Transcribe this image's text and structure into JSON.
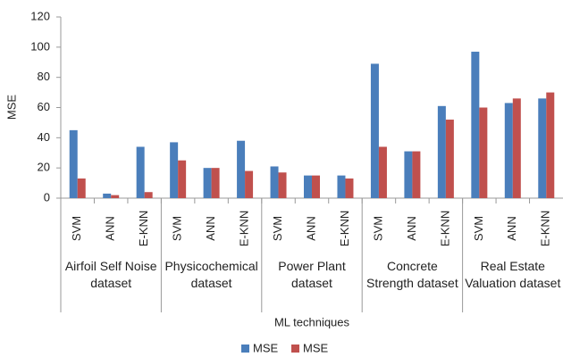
{
  "chart_data": {
    "type": "bar",
    "y_label": "MSE",
    "x_label": "ML techniques",
    "categories": [
      "SVM",
      "ANN",
      "E-KNN",
      "SVM",
      "ANN",
      "E-KNN",
      "SVM",
      "ANN",
      "E-KNN",
      "SVM",
      "ANN",
      "E-KNN",
      "SVM",
      "ANN",
      "E-KNN"
    ],
    "category_groups": [
      "Airfoil Self Noise dataset",
      "Physicochemical dataset",
      "Power Plant dataset",
      "Concrete Strength dataset",
      "Real Estate Valuation dataset"
    ],
    "series": [
      {
        "name": "MSE",
        "color": "#4a7ebb",
        "values": [
          45,
          3,
          34,
          37,
          20,
          38,
          21,
          15,
          15,
          89,
          31,
          61,
          97,
          63,
          66
        ]
      },
      {
        "name": "MSE",
        "color": "#c0504d",
        "values": [
          13,
          2,
          4,
          25,
          20,
          18,
          17,
          15,
          13,
          34,
          31,
          52,
          60,
          66,
          70
        ]
      }
    ],
    "ylim": [
      0,
      120
    ],
    "yticks": [
      0,
      20,
      40,
      60,
      80,
      100,
      120
    ],
    "grid": false,
    "legend": "bottom"
  }
}
